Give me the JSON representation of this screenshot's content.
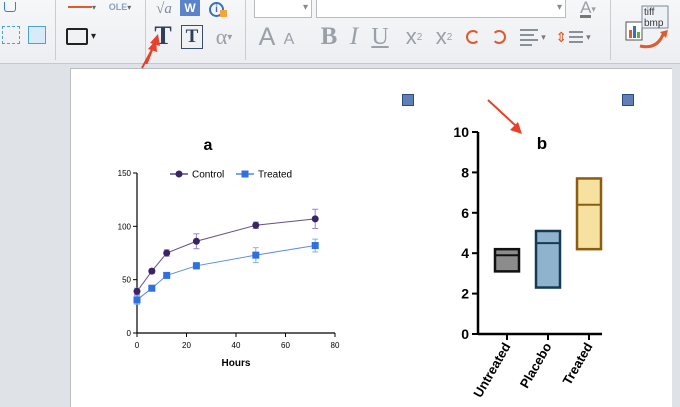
{
  "toolbar": {
    "text_tool_label": "T",
    "textbox_tool_label": "T",
    "alpha_label": "α",
    "sqrt_label": "√a",
    "word_label": "W",
    "grow_font_label": "A",
    "shrink_font_label": "A",
    "bold_label": "B",
    "italic_label": "I",
    "underline_label": "U",
    "superscript_label": "x",
    "superscript_mark": "2",
    "subscript_label": "x",
    "subscript_mark": "2",
    "font_color_label": "A",
    "export_line1": "tiff",
    "export_line2": "bmp",
    "font_size_value": "",
    "font_name_value": ""
  },
  "chart_a": {
    "chart_data": {
      "type": "line",
      "title": "a",
      "xlabel": "Hours",
      "ylabel": "",
      "xlim": [
        0,
        80
      ],
      "ylim": [
        0,
        150
      ],
      "xticks": [
        0,
        20,
        40,
        60,
        80
      ],
      "yticks": [
        0,
        50,
        100,
        150
      ],
      "legend_position": "top",
      "series": [
        {
          "name": "Control",
          "color": "#3b2466",
          "marker": "circle",
          "x": [
            0,
            6,
            12,
            24,
            48,
            72
          ],
          "y": [
            39,
            58,
            75,
            86,
            101,
            107
          ],
          "err": [
            3,
            2,
            3,
            7,
            3,
            9
          ]
        },
        {
          "name": "Treated",
          "color": "#2f6fe0",
          "marker": "square",
          "x": [
            0,
            6,
            12,
            24,
            48,
            72
          ],
          "y": [
            31,
            42,
            54,
            63,
            73,
            82
          ],
          "err": [
            4,
            2,
            2,
            3,
            7,
            6
          ]
        }
      ]
    }
  },
  "chart_b": {
    "chart_data": {
      "type": "bar",
      "subtype": "floating-box",
      "title": "b",
      "xlabel": "",
      "ylabel": "",
      "ylim": [
        0,
        10
      ],
      "yticks": [
        0,
        2,
        4,
        6,
        8,
        10
      ],
      "categories": [
        "Untreated",
        "Placebo",
        "Treated"
      ],
      "boxes": [
        {
          "min": 3.1,
          "mid": 3.9,
          "max": 4.2,
          "fill": "#8c8c8c",
          "stroke": "#111111"
        },
        {
          "min": 2.3,
          "mid": 4.5,
          "max": 5.1,
          "fill": "#8fb3cc",
          "stroke": "#163a55"
        },
        {
          "min": 4.2,
          "mid": 6.4,
          "max": 7.7,
          "fill": "#f6e1a0",
          "stroke": "#8a5d12"
        }
      ]
    }
  }
}
